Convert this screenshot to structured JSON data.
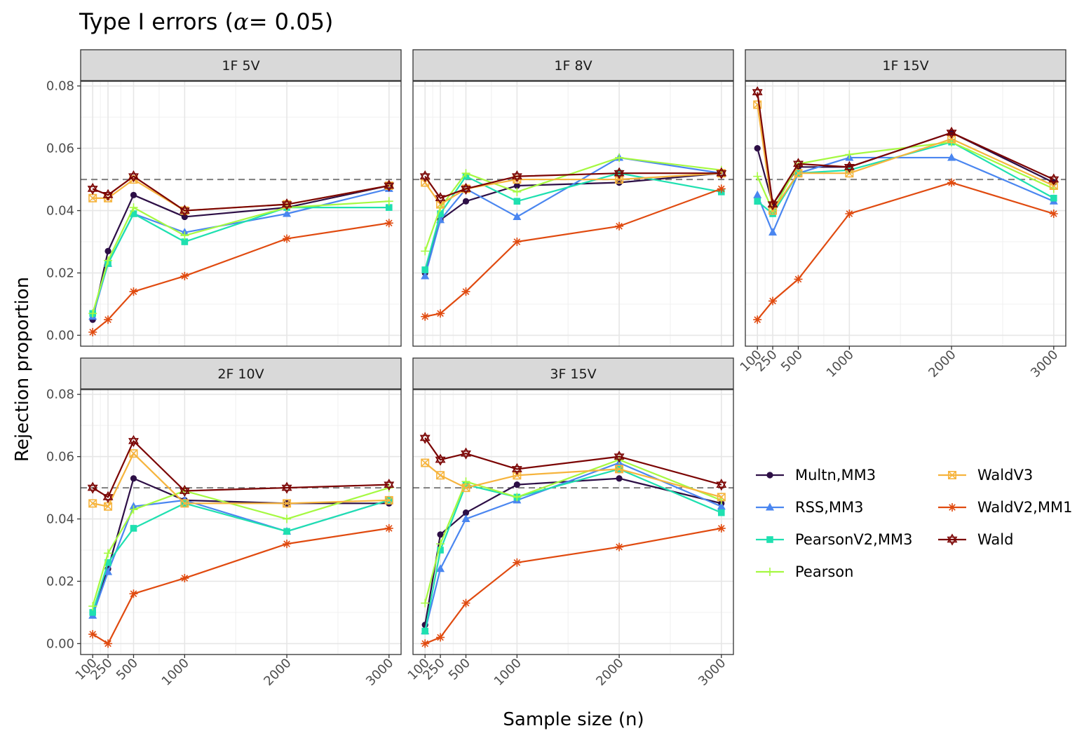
{
  "chart_data": {
    "type": "line",
    "title_main": "Type I errors (",
    "title_alpha": "α",
    "title_rest": "= 0.05)",
    "xlabel": "Sample size (n)",
    "ylabel": "Rejection proportion",
    "x": [
      100,
      250,
      500,
      1000,
      2000,
      3000
    ],
    "x_tick_labels": [
      "100",
      "250",
      "500",
      "1000",
      "2000",
      "3000"
    ],
    "y_ticks": [
      0.0,
      0.02,
      0.04,
      0.06,
      0.08
    ],
    "y_tick_labels": [
      "0.00",
      "0.02",
      "0.04",
      "0.06",
      "0.08"
    ],
    "ylim": [
      -0.0035,
      0.0815
    ],
    "xlim": [
      -18,
      3118
    ],
    "reference_line": 0.05,
    "grid": true,
    "legend_position": "right",
    "series": [
      {
        "name": "Multn,MM3",
        "color": "#2d0f46",
        "marker": "circle"
      },
      {
        "name": "RSS,MM3",
        "color": "#4a86f0",
        "marker": "triangle"
      },
      {
        "name": "PearsonV2,MM3",
        "color": "#1fe0b0",
        "marker": "square"
      },
      {
        "name": "Pearson",
        "color": "#a5f941",
        "marker": "plus"
      },
      {
        "name": "WaldV3",
        "color": "#f6b43d",
        "marker": "boxtimes"
      },
      {
        "name": "WaldV2,MM1",
        "color": "#e04a0f",
        "marker": "asterisk"
      },
      {
        "name": "Wald",
        "color": "#7b0403",
        "marker": "star"
      }
    ],
    "panels": [
      {
        "label": "1F 5V",
        "values": [
          [
            0.005,
            0.027,
            0.045,
            0.038,
            0.041,
            0.048
          ],
          [
            0.006,
            0.023,
            0.039,
            0.033,
            0.039,
            0.047
          ],
          [
            0.007,
            0.023,
            0.039,
            0.03,
            0.041,
            0.041
          ],
          [
            0.007,
            0.024,
            0.041,
            0.032,
            0.041,
            0.043
          ],
          [
            0.044,
            0.044,
            0.05,
            0.04,
            0.042,
            0.048
          ],
          [
            0.001,
            0.005,
            0.014,
            0.019,
            0.031,
            0.036
          ],
          [
            0.047,
            0.045,
            0.051,
            0.04,
            0.042,
            0.048
          ]
        ]
      },
      {
        "label": "1F 8V",
        "values": [
          [
            0.02,
            0.037,
            0.043,
            0.048,
            0.049,
            0.052
          ],
          [
            0.019,
            0.037,
            0.047,
            0.038,
            0.057,
            0.052
          ],
          [
            0.021,
            0.039,
            0.051,
            0.043,
            0.052,
            0.046
          ],
          [
            0.027,
            0.041,
            0.052,
            0.046,
            0.057,
            0.053
          ],
          [
            0.049,
            0.042,
            0.047,
            0.05,
            0.05,
            0.052
          ],
          [
            0.006,
            0.007,
            0.014,
            0.03,
            0.035,
            0.047
          ],
          [
            0.051,
            0.044,
            0.047,
            0.051,
            0.052,
            0.052
          ]
        ]
      },
      {
        "label": "1F 15V",
        "values": [
          [
            0.06,
            0.042,
            0.054,
            0.054,
            0.065,
            0.049
          ],
          [
            0.045,
            0.033,
            0.052,
            0.057,
            0.057,
            0.043
          ],
          [
            0.043,
            0.039,
            0.052,
            0.053,
            0.062,
            0.044
          ],
          [
            0.051,
            0.04,
            0.055,
            0.058,
            0.062,
            0.047
          ],
          [
            0.074,
            0.04,
            0.052,
            0.052,
            0.063,
            0.048
          ],
          [
            0.005,
            0.011,
            0.018,
            0.039,
            0.049,
            0.039
          ],
          [
            0.078,
            0.042,
            0.055,
            0.054,
            0.065,
            0.05
          ]
        ]
      },
      {
        "label": "2F 10V",
        "values": [
          [
            0.01,
            0.024,
            0.053,
            0.046,
            0.045,
            0.045
          ],
          [
            0.009,
            0.023,
            0.044,
            0.046,
            0.036,
            0.046
          ],
          [
            0.01,
            0.026,
            0.037,
            0.045,
            0.036,
            0.046
          ],
          [
            0.012,
            0.029,
            0.043,
            0.049,
            0.04,
            0.05
          ],
          [
            0.045,
            0.044,
            0.061,
            0.045,
            0.045,
            0.046
          ],
          [
            0.003,
            0.0,
            0.016,
            0.021,
            0.032,
            0.037
          ],
          [
            0.05,
            0.047,
            0.065,
            0.049,
            0.05,
            0.051
          ]
        ]
      },
      {
        "label": "3F 15V",
        "values": [
          [
            0.006,
            0.035,
            0.042,
            0.051,
            0.053,
            0.045
          ],
          [
            0.004,
            0.024,
            0.04,
            0.046,
            0.058,
            0.044
          ],
          [
            0.004,
            0.03,
            0.051,
            0.047,
            0.056,
            0.042
          ],
          [
            0.013,
            0.032,
            0.052,
            0.047,
            0.059,
            0.046
          ],
          [
            0.058,
            0.054,
            0.05,
            0.054,
            0.056,
            0.047
          ],
          [
            0.0,
            0.002,
            0.013,
            0.026,
            0.031,
            0.037
          ],
          [
            0.066,
            0.059,
            0.061,
            0.056,
            0.06,
            0.051
          ]
        ]
      }
    ]
  }
}
